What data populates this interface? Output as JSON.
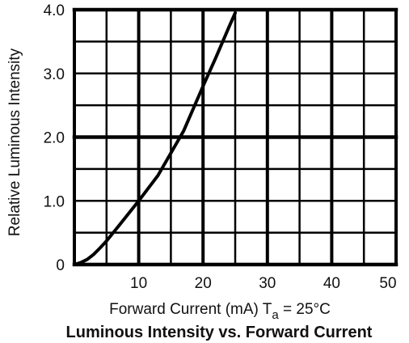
{
  "chart_data": {
    "type": "line",
    "title": "Luminous Intensity vs. Forward Current",
    "xlabel": "Forward Current (mA) T",
    "xlabel_subscript": "a",
    "xlabel_suffix": " = 25°C",
    "ylabel": "Relative Luminous Intensity",
    "xlim": [
      0,
      50
    ],
    "ylim": [
      0,
      4.0
    ],
    "x_ticks": [
      "10",
      "20",
      "30",
      "40",
      "50"
    ],
    "y_ticks": [
      "0",
      "1.0",
      "2.0",
      "3.0",
      "4.0"
    ],
    "grid": true,
    "legend": "none",
    "series": [
      {
        "x": [
          0,
          1,
          2,
          3,
          4,
          5,
          7,
          10,
          13,
          15,
          17,
          20,
          22,
          24,
          25
        ],
        "y": [
          0,
          0.03,
          0.08,
          0.16,
          0.26,
          0.37,
          0.62,
          1.0,
          1.4,
          1.75,
          2.1,
          2.8,
          3.25,
          3.72,
          3.95
        ]
      }
    ],
    "line_color": "#000000",
    "grid_color": "#000000"
  }
}
